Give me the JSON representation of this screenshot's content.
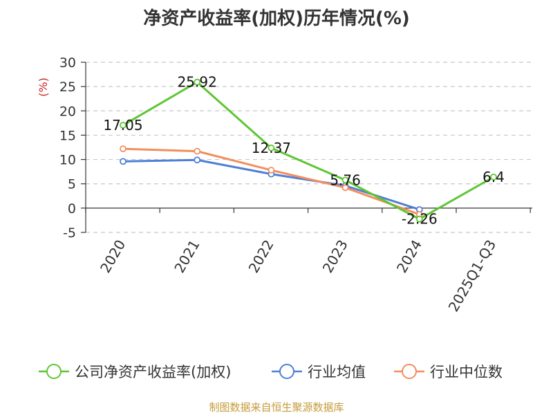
{
  "title": "净资产收益率(加权)历年情况(%)",
  "source": "制图数据来自恒生聚源数据库",
  "chart_data": {
    "type": "line",
    "title": "净资产收益率(加权)历年情况(%)",
    "ylabel": "(%)",
    "xlabel": "",
    "ylim": [
      -5,
      30
    ],
    "yticks": [
      30,
      25,
      20,
      15,
      10,
      5,
      0,
      -5
    ],
    "grid": true,
    "legend_position": "bottom",
    "categories": [
      "2020",
      "2021",
      "2022",
      "2023",
      "2024",
      "2025Q1-Q3"
    ],
    "series": [
      {
        "name": "公司净资产收益率(加权)",
        "color": "#5dc633",
        "values": [
          17.05,
          25.92,
          12.37,
          5.76,
          -2.26,
          6.4
        ],
        "labels": [
          "17.05",
          "25.92",
          "12.37",
          "5.76",
          "-2.26",
          "6.4"
        ]
      },
      {
        "name": "行业均值",
        "color": "#4f7fd6",
        "values": [
          9.6,
          9.9,
          7.0,
          4.6,
          -0.3,
          null
        ]
      },
      {
        "name": "行业中位数",
        "color": "#f28e5d",
        "values": [
          12.2,
          11.7,
          7.8,
          4.2,
          -1.3,
          null
        ]
      }
    ]
  }
}
